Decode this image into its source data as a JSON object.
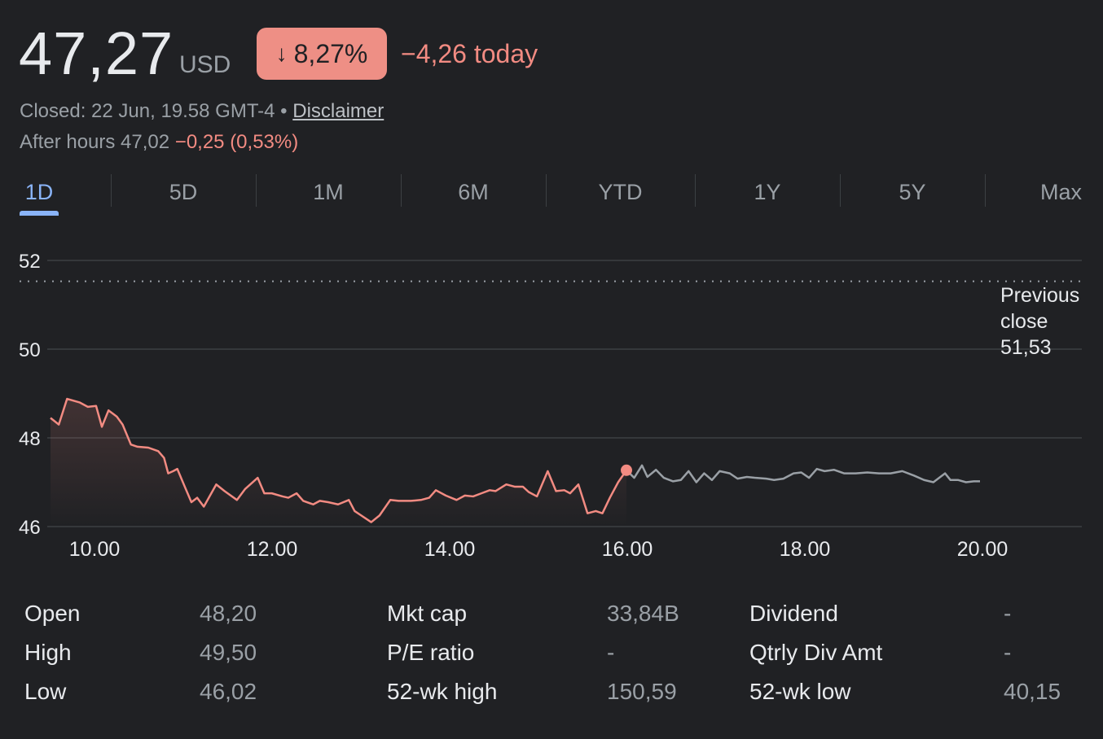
{
  "quote": {
    "price": "47,27",
    "currency": "USD",
    "change_pct": "8,27%",
    "change_today": "−4,26 today",
    "closed_text": "Closed: 22 Jun, 19.58 GMT-4",
    "separator": "•",
    "disclaimer": "Disclaimer",
    "after_hours_label": "After hours 47,02",
    "after_hours_change": "−0,25 (0,53%)"
  },
  "tabs": [
    {
      "label": "1D",
      "active": true
    },
    {
      "label": "5D",
      "active": false
    },
    {
      "label": "1M",
      "active": false
    },
    {
      "label": "6M",
      "active": false
    },
    {
      "label": "YTD",
      "active": false
    },
    {
      "label": "1Y",
      "active": false
    },
    {
      "label": "5Y",
      "active": false
    },
    {
      "label": "Max",
      "active": false
    }
  ],
  "colors": {
    "negative": "#f28b82",
    "badge_bg": "#ee8f85",
    "after_hours_line": "#9aa0a6",
    "accent": "#8ab4f8"
  },
  "chart_data": {
    "type": "line",
    "y_ticks": [
      "52",
      "50",
      "48",
      "46"
    ],
    "x_ticks": [
      "10.00",
      "12.00",
      "14.00",
      "16.00",
      "18.00",
      "20.00"
    ],
    "ylim": [
      45.6,
      52.4
    ],
    "xlim": [
      9.5,
      21.1
    ],
    "previous_close": {
      "label_line1": "Previous",
      "label_line2": "close",
      "value": "51,53",
      "y": 51.53
    },
    "current_point": {
      "x": 16.0,
      "y": 47.27
    },
    "series": [
      {
        "session": "regular",
        "color": "#f28b82",
        "points": [
          [
            9.5,
            48.45
          ],
          [
            9.6,
            48.3
          ],
          [
            9.7,
            48.88
          ],
          [
            9.85,
            48.8
          ],
          [
            9.95,
            48.7
          ],
          [
            10.05,
            48.72
          ],
          [
            10.12,
            48.25
          ],
          [
            10.2,
            48.62
          ],
          [
            10.3,
            48.48
          ],
          [
            10.37,
            48.3
          ],
          [
            10.47,
            47.85
          ],
          [
            10.55,
            47.8
          ],
          [
            10.68,
            47.78
          ],
          [
            10.8,
            47.7
          ],
          [
            10.87,
            47.55
          ],
          [
            10.92,
            47.2
          ],
          [
            10.98,
            47.25
          ],
          [
            11.03,
            47.3
          ],
          [
            11.12,
            46.9
          ],
          [
            11.2,
            46.55
          ],
          [
            11.27,
            46.65
          ],
          [
            11.35,
            46.45
          ],
          [
            11.5,
            46.95
          ],
          [
            11.6,
            46.8
          ],
          [
            11.75,
            46.6
          ],
          [
            11.85,
            46.85
          ],
          [
            12.0,
            47.1
          ],
          [
            12.08,
            46.75
          ],
          [
            12.17,
            46.75
          ],
          [
            12.3,
            46.68
          ],
          [
            12.37,
            46.65
          ],
          [
            12.47,
            46.75
          ],
          [
            12.55,
            46.58
          ],
          [
            12.67,
            46.5
          ],
          [
            12.75,
            46.58
          ],
          [
            12.85,
            46.55
          ],
          [
            12.97,
            46.5
          ],
          [
            13.1,
            46.6
          ],
          [
            13.17,
            46.35
          ],
          [
            13.25,
            46.25
          ],
          [
            13.37,
            46.1
          ],
          [
            13.47,
            46.25
          ],
          [
            13.6,
            46.6
          ],
          [
            13.7,
            46.58
          ],
          [
            13.85,
            46.58
          ],
          [
            13.97,
            46.6
          ],
          [
            14.07,
            46.65
          ],
          [
            14.15,
            46.82
          ],
          [
            14.27,
            46.7
          ],
          [
            14.4,
            46.6
          ],
          [
            14.5,
            46.7
          ],
          [
            14.6,
            46.68
          ],
          [
            14.7,
            46.75
          ],
          [
            14.8,
            46.82
          ],
          [
            14.87,
            46.8
          ],
          [
            15.0,
            46.95
          ],
          [
            15.1,
            46.9
          ],
          [
            15.2,
            46.9
          ],
          [
            15.27,
            46.78
          ],
          [
            15.37,
            46.68
          ],
          [
            15.5,
            47.25
          ],
          [
            15.6,
            46.8
          ],
          [
            15.7,
            46.82
          ],
          [
            15.77,
            46.75
          ],
          [
            15.87,
            46.95
          ],
          [
            15.98,
            46.3
          ],
          [
            16.08,
            46.35
          ],
          [
            16.16,
            46.3
          ],
          [
            16.25,
            46.65
          ],
          [
            16.35,
            47.0
          ],
          [
            16.45,
            47.27
          ]
        ]
      },
      {
        "session": "after_hours",
        "color": "#9aa0a6",
        "points": [
          [
            16.45,
            47.27
          ],
          [
            16.55,
            47.1
          ],
          [
            16.65,
            47.38
          ],
          [
            16.72,
            47.12
          ],
          [
            16.83,
            47.28
          ],
          [
            16.93,
            47.1
          ],
          [
            17.05,
            47.02
          ],
          [
            17.15,
            47.05
          ],
          [
            17.25,
            47.25
          ],
          [
            17.35,
            47.0
          ],
          [
            17.45,
            47.2
          ],
          [
            17.55,
            47.05
          ],
          [
            17.65,
            47.25
          ],
          [
            17.78,
            47.2
          ],
          [
            17.88,
            47.08
          ],
          [
            18.0,
            47.12
          ],
          [
            18.1,
            47.1
          ],
          [
            18.25,
            47.08
          ],
          [
            18.35,
            47.05
          ],
          [
            18.47,
            47.08
          ],
          [
            18.6,
            47.2
          ],
          [
            18.7,
            47.22
          ],
          [
            18.8,
            47.1
          ],
          [
            18.9,
            47.3
          ],
          [
            19.0,
            47.25
          ],
          [
            19.12,
            47.28
          ],
          [
            19.25,
            47.2
          ],
          [
            19.4,
            47.2
          ],
          [
            19.55,
            47.22
          ],
          [
            19.7,
            47.2
          ],
          [
            19.85,
            47.2
          ],
          [
            20.0,
            47.25
          ],
          [
            20.15,
            47.15
          ],
          [
            20.28,
            47.05
          ],
          [
            20.4,
            47.0
          ],
          [
            20.55,
            47.2
          ],
          [
            20.62,
            47.05
          ],
          [
            20.72,
            47.05
          ],
          [
            20.82,
            47.0
          ],
          [
            20.92,
            47.02
          ],
          [
            21.0,
            47.02
          ]
        ]
      }
    ]
  },
  "stats": {
    "col1": [
      {
        "label": "Open",
        "value": "48,20"
      },
      {
        "label": "High",
        "value": "49,50"
      },
      {
        "label": "Low",
        "value": "46,02"
      }
    ],
    "col2": [
      {
        "label": "Mkt cap",
        "value": "33,84B"
      },
      {
        "label": "P/E ratio",
        "value": "-"
      },
      {
        "label": "52-wk high",
        "value": "150,59"
      }
    ],
    "col3": [
      {
        "label": "Dividend",
        "value": "-"
      },
      {
        "label": "Qtrly Div Amt",
        "value": "-"
      },
      {
        "label": "52-wk low",
        "value": "40,15"
      }
    ]
  }
}
